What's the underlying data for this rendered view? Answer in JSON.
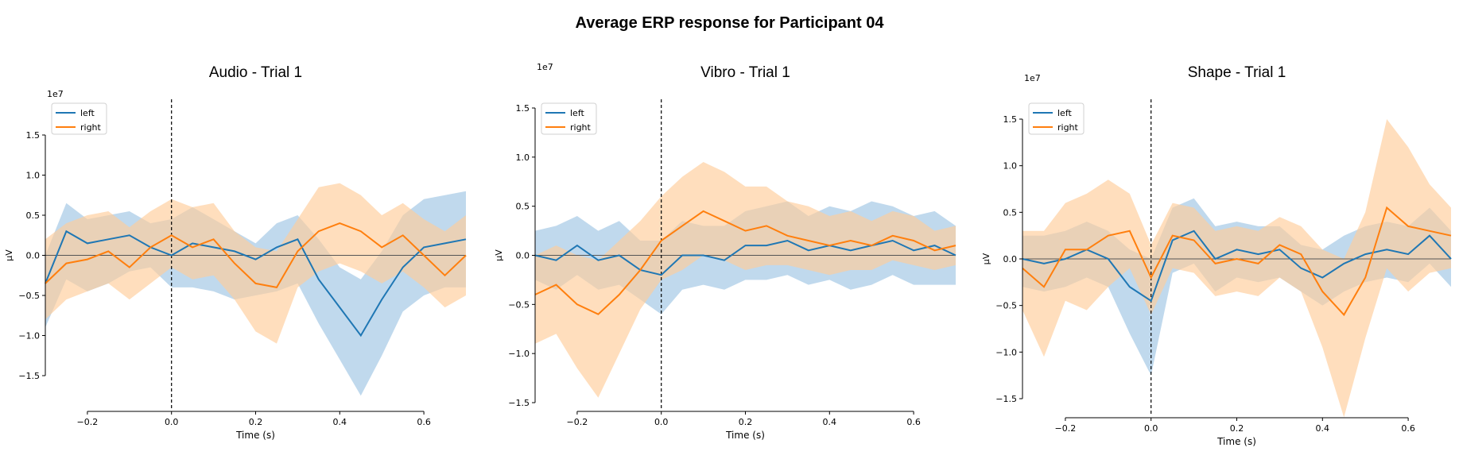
{
  "figure": {
    "title": "Average ERP response for Participant 04"
  },
  "colors": {
    "left": "#1f77b4",
    "right": "#ff7f0e",
    "left_band": "#9ec4e3",
    "right_band": "#ffcc99"
  },
  "chart_data": [
    {
      "type": "line",
      "title": "Audio - Trial 1",
      "xlabel": "Time (s)",
      "ylabel": "µV",
      "scale_label": "1e7",
      "xlim": [
        -0.3,
        0.7
      ],
      "ylim": [
        -1.5,
        1.5
      ],
      "xticks": [
        -0.2,
        0.0,
        0.2,
        0.4,
        0.6
      ],
      "xtick_labels": [
        "−0.2",
        "0.0",
        "0.2",
        "0.4",
        "0.6"
      ],
      "yticks": [
        -1.5,
        -1.0,
        -0.5,
        0.0,
        0.5,
        1.0,
        1.5
      ],
      "ytick_labels": [
        "−1.5",
        "−1.0",
        "−0.5",
        "0.0",
        "0.5",
        "1.0",
        "1.5"
      ],
      "legend": [
        "left",
        "right"
      ],
      "legend_loc": "upper-left",
      "x": [
        -0.3,
        -0.25,
        -0.2,
        -0.15,
        -0.1,
        -0.05,
        0.0,
        0.05,
        0.1,
        0.15,
        0.2,
        0.25,
        0.3,
        0.35,
        0.4,
        0.45,
        0.5,
        0.55,
        0.6,
        0.65,
        0.7
      ],
      "series": [
        {
          "name": "left",
          "values": [
            -0.35,
            0.3,
            0.15,
            0.2,
            0.25,
            0.1,
            0.0,
            0.15,
            0.1,
            0.05,
            -0.05,
            0.1,
            0.2,
            -0.3,
            -0.65,
            -1.0,
            -0.55,
            -0.15,
            0.1,
            0.15,
            0.2
          ],
          "upper": [
            0.0,
            0.65,
            0.45,
            0.5,
            0.55,
            0.4,
            0.45,
            0.6,
            0.45,
            0.3,
            0.15,
            0.4,
            0.5,
            0.2,
            -0.15,
            -0.3,
            0.05,
            0.5,
            0.7,
            0.75,
            0.8
          ],
          "lower": [
            -0.9,
            -0.3,
            -0.45,
            -0.35,
            -0.2,
            -0.15,
            -0.4,
            -0.4,
            -0.45,
            -0.55,
            -0.5,
            -0.45,
            -0.35,
            -0.85,
            -1.3,
            -1.75,
            -1.25,
            -0.7,
            -0.5,
            -0.4,
            -0.4
          ]
        },
        {
          "name": "right",
          "values": [
            -0.35,
            -0.1,
            -0.05,
            0.05,
            -0.15,
            0.1,
            0.25,
            0.1,
            0.2,
            -0.1,
            -0.35,
            -0.4,
            0.05,
            0.3,
            0.4,
            0.3,
            0.1,
            0.25,
            0.0,
            -0.25,
            0.0
          ],
          "upper": [
            0.2,
            0.4,
            0.5,
            0.55,
            0.35,
            0.55,
            0.7,
            0.6,
            0.65,
            0.3,
            0.1,
            0.05,
            0.45,
            0.85,
            0.9,
            0.75,
            0.5,
            0.65,
            0.45,
            0.3,
            0.5
          ],
          "lower": [
            -0.8,
            -0.55,
            -0.45,
            -0.35,
            -0.55,
            -0.35,
            -0.15,
            -0.3,
            -0.25,
            -0.55,
            -0.95,
            -1.1,
            -0.4,
            -0.2,
            -0.1,
            -0.2,
            -0.35,
            -0.2,
            -0.4,
            -0.65,
            -0.5
          ]
        }
      ]
    },
    {
      "type": "line",
      "title": "Vibro - Trial 1",
      "xlabel": "Time (s)",
      "ylabel": "µV",
      "scale_label": "1e7",
      "xlim": [
        -0.3,
        0.7
      ],
      "ylim": [
        -1.5,
        1.5
      ],
      "xticks": [
        -0.2,
        0.0,
        0.2,
        0.4,
        0.6
      ],
      "xtick_labels": [
        "−0.2",
        "0.0",
        "0.2",
        "0.4",
        "0.6"
      ],
      "yticks": [
        -1.5,
        -1.0,
        -0.5,
        0.0,
        0.5,
        1.0,
        1.5
      ],
      "ytick_labels": [
        "−1.5",
        "−1.0",
        "−0.5",
        "0.0",
        "0.5",
        "1.0",
        "1.5"
      ],
      "legend": [
        "left",
        "right"
      ],
      "legend_loc": "upper-left",
      "x": [
        -0.3,
        -0.25,
        -0.2,
        -0.15,
        -0.1,
        -0.05,
        0.0,
        0.05,
        0.1,
        0.15,
        0.2,
        0.25,
        0.3,
        0.35,
        0.4,
        0.45,
        0.5,
        0.55,
        0.6,
        0.65,
        0.7
      ],
      "series": [
        {
          "name": "left",
          "values": [
            0.0,
            -0.05,
            0.1,
            -0.05,
            0.0,
            -0.15,
            -0.2,
            0.0,
            0.0,
            -0.05,
            0.1,
            0.1,
            0.15,
            0.05,
            0.1,
            0.05,
            0.1,
            0.15,
            0.05,
            0.1,
            0.0
          ],
          "upper": [
            0.25,
            0.3,
            0.4,
            0.25,
            0.35,
            0.15,
            0.15,
            0.35,
            0.3,
            0.3,
            0.45,
            0.5,
            0.55,
            0.4,
            0.5,
            0.45,
            0.55,
            0.5,
            0.4,
            0.45,
            0.3
          ],
          "lower": [
            -0.25,
            -0.35,
            -0.2,
            -0.35,
            -0.3,
            -0.45,
            -0.6,
            -0.35,
            -0.3,
            -0.35,
            -0.25,
            -0.25,
            -0.2,
            -0.3,
            -0.25,
            -0.35,
            -0.3,
            -0.2,
            -0.3,
            -0.3,
            -0.3
          ]
        },
        {
          "name": "right",
          "values": [
            -0.4,
            -0.3,
            -0.5,
            -0.6,
            -0.4,
            -0.15,
            0.15,
            0.3,
            0.45,
            0.35,
            0.25,
            0.3,
            0.2,
            0.15,
            0.1,
            0.15,
            0.1,
            0.2,
            0.15,
            0.05,
            0.1
          ],
          "upper": [
            0.0,
            0.1,
            0.0,
            -0.05,
            0.15,
            0.35,
            0.6,
            0.8,
            0.95,
            0.85,
            0.7,
            0.7,
            0.55,
            0.5,
            0.4,
            0.45,
            0.35,
            0.45,
            0.4,
            0.25,
            0.3
          ],
          "lower": [
            -0.9,
            -0.8,
            -1.15,
            -1.45,
            -1.0,
            -0.55,
            -0.25,
            -0.15,
            0.0,
            -0.05,
            -0.15,
            -0.1,
            -0.1,
            -0.15,
            -0.2,
            -0.15,
            -0.15,
            -0.05,
            -0.1,
            -0.15,
            -0.1
          ]
        }
      ]
    },
    {
      "type": "line",
      "title": "Shape - Trial 1",
      "xlabel": "Time (s)",
      "ylabel": "µV",
      "scale_label": "1e7",
      "xlim": [
        -0.3,
        0.7
      ],
      "ylim": [
        -1.5,
        1.5
      ],
      "xticks": [
        -0.2,
        0.0,
        0.2,
        0.4,
        0.6
      ],
      "xtick_labels": [
        "−0.2",
        "0.0",
        "0.2",
        "0.4",
        "0.6"
      ],
      "yticks": [
        -1.5,
        -1.0,
        -0.5,
        0.0,
        0.5,
        1.0,
        1.5
      ],
      "ytick_labels": [
        "−1.5",
        "−1.0",
        "−0.5",
        "0.0",
        "0.5",
        "1.0",
        "1.5"
      ],
      "legend": [
        "left",
        "right"
      ],
      "legend_loc": "upper-left",
      "x": [
        -0.3,
        -0.25,
        -0.2,
        -0.15,
        -0.1,
        -0.05,
        0.0,
        0.05,
        0.1,
        0.15,
        0.2,
        0.25,
        0.3,
        0.35,
        0.4,
        0.45,
        0.5,
        0.55,
        0.6,
        0.65,
        0.7
      ],
      "series": [
        {
          "name": "left",
          "values": [
            0.0,
            -0.05,
            0.0,
            0.1,
            0.0,
            -0.3,
            -0.45,
            0.2,
            0.3,
            0.0,
            0.1,
            0.05,
            0.1,
            -0.1,
            -0.2,
            -0.05,
            0.05,
            0.1,
            0.05,
            0.25,
            0.0
          ],
          "upper": [
            0.25,
            0.25,
            0.3,
            0.4,
            0.3,
            0.1,
            0.0,
            0.55,
            0.65,
            0.35,
            0.4,
            0.35,
            0.35,
            0.15,
            0.1,
            0.25,
            0.35,
            0.4,
            0.35,
            0.55,
            0.3
          ],
          "lower": [
            -0.3,
            -0.35,
            -0.3,
            -0.2,
            -0.3,
            -0.8,
            -1.25,
            -0.15,
            -0.05,
            -0.35,
            -0.2,
            -0.25,
            -0.2,
            -0.35,
            -0.5,
            -0.35,
            -0.25,
            -0.2,
            -0.25,
            -0.05,
            -0.3
          ]
        },
        {
          "name": "right",
          "values": [
            -0.1,
            -0.3,
            0.1,
            0.1,
            0.25,
            0.3,
            -0.2,
            0.25,
            0.2,
            -0.05,
            0.0,
            -0.05,
            0.15,
            0.05,
            -0.35,
            -0.6,
            -0.2,
            0.55,
            0.35,
            0.3,
            0.25
          ],
          "upper": [
            0.3,
            0.3,
            0.6,
            0.7,
            0.85,
            0.7,
            0.15,
            0.6,
            0.55,
            0.3,
            0.35,
            0.3,
            0.45,
            0.35,
            0.1,
            0.0,
            0.5,
            1.5,
            1.2,
            0.8,
            0.55
          ],
          "lower": [
            -0.55,
            -1.05,
            -0.45,
            -0.55,
            -0.3,
            -0.1,
            -0.6,
            -0.1,
            -0.15,
            -0.4,
            -0.35,
            -0.4,
            -0.2,
            -0.35,
            -0.95,
            -1.7,
            -0.85,
            -0.1,
            -0.35,
            -0.15,
            -0.1
          ]
        }
      ]
    }
  ]
}
